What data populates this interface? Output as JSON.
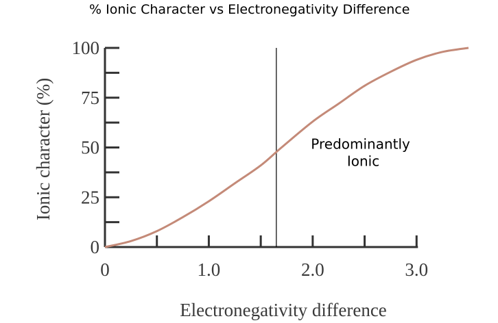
{
  "chart_data": {
    "type": "line",
    "title": "% Ionic Character vs Electronegativity Difference",
    "xlabel": "Electronegativity difference",
    "ylabel": "Ionic character (%)",
    "xlim": [
      0,
      3.5
    ],
    "ylim": [
      0,
      100
    ],
    "x_ticks": [
      0,
      0.5,
      1.0,
      1.5,
      2.0,
      2.5,
      3.0
    ],
    "x_tick_labels": [
      {
        "value": 0,
        "label": "0"
      },
      {
        "value": 1.0,
        "label": "1.0"
      },
      {
        "value": 2.0,
        "label": "2.0"
      },
      {
        "value": 3.0,
        "label": "3.0"
      }
    ],
    "y_ticks": [
      0,
      12.5,
      25,
      37.5,
      50,
      62.5,
      75,
      87.5,
      100
    ],
    "y_tick_labels": [
      {
        "value": 0,
        "label": "0"
      },
      {
        "value": 25,
        "label": "25"
      },
      {
        "value": 50,
        "label": "50"
      },
      {
        "value": 75,
        "label": "75"
      },
      {
        "value": 100,
        "label": "100"
      }
    ],
    "series": [
      {
        "color": "#c48a78",
        "x": [
          0,
          0.25,
          0.5,
          0.75,
          1.0,
          1.25,
          1.5,
          1.7,
          2.0,
          2.25,
          2.5,
          2.75,
          3.0,
          3.25,
          3.5
        ],
        "y": [
          0,
          3,
          8,
          15,
          23,
          32,
          41,
          50,
          63,
          72,
          81,
          88,
          94,
          98,
          100
        ]
      }
    ],
    "reference_line": {
      "x": 1.65
    },
    "annotation": {
      "line1": "Predominantly",
      "line2": "Ionic",
      "x": 2.5,
      "y": 48
    },
    "grid": false,
    "legend": "none"
  }
}
